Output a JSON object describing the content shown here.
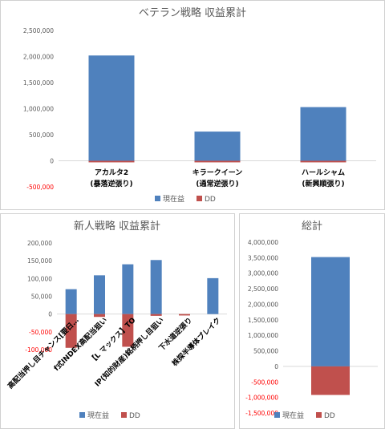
{
  "colors": {
    "profit": "#4f81bd",
    "dd": "#c0504d",
    "axis_text": "#595959",
    "negative_text": "#ff0000",
    "grid": "#d9d9d9"
  },
  "chart_data": [
    {
      "type": "bar",
      "title": "ベテラン戦略 収益累計",
      "categories": [
        [
          "アカルタ2",
          "(暴落逆張り)"
        ],
        [
          "キラークイーン",
          "(通常逆張り)"
        ],
        [
          "ハールシャム",
          "(新興順張り)"
        ]
      ],
      "series": [
        {
          "name": "現在益",
          "values": [
            2020000,
            560000,
            1030000
          ]
        },
        {
          "name": "DD",
          "values": [
            -30000,
            -30000,
            -30000
          ]
        }
      ],
      "ylim": [
        -500000,
        2500000
      ],
      "yticks": [
        -500000,
        0,
        500000,
        1000000,
        1500000,
        2000000,
        2500000
      ],
      "ytick_labels": [
        "-500,000",
        "0",
        "500,000",
        "1,000,000",
        "1,500,000",
        "2,000,000",
        "2,500,000"
      ],
      "grid": false,
      "legend": "bottom"
    },
    {
      "type": "bar",
      "title": "新人戦略 収益累計",
      "categories": [
        "高配当押し目チャンス[要日…",
        "f式INDEX高配当狙い",
        "【L マックス】TO",
        "IP(知的財産)銘柄押し目狙い",
        "下水道逆張り",
        "株探半導体ブレイク"
      ],
      "series": [
        {
          "name": "現在益",
          "values": [
            70000,
            109000,
            140000,
            152000,
            0,
            101000
          ]
        },
        {
          "name": "DD",
          "values": [
            -95000,
            -8000,
            -92000,
            -5000,
            -4000,
            0
          ]
        }
      ],
      "ylim": [
        -100000,
        200000
      ],
      "yticks": [
        -100000,
        -50000,
        0,
        50000,
        100000,
        150000,
        200000
      ],
      "ytick_labels": [
        "-100,000",
        "-50,000",
        "0",
        "50,000",
        "100,000",
        "150,000",
        "200,000"
      ],
      "grid": false,
      "legend": "bottom"
    },
    {
      "type": "bar",
      "title": "総計",
      "categories": [
        ""
      ],
      "series": [
        {
          "name": "現在益",
          "values": [
            3520000
          ]
        },
        {
          "name": "DD",
          "values": [
            -920000
          ]
        }
      ],
      "ylim": [
        -1500000,
        4000000
      ],
      "yticks": [
        -1500000,
        -1000000,
        -500000,
        0,
        500000,
        1000000,
        1500000,
        2000000,
        2500000,
        3000000,
        3500000,
        4000000
      ],
      "ytick_labels": [
        "-1,500,000",
        "-1,000,000",
        "-500,000",
        "0",
        "500,000",
        "1,000,000",
        "1,500,000",
        "2,000,000",
        "2,500,000",
        "3,000,000",
        "3,500,000",
        "4,000,000"
      ],
      "grid": false,
      "legend": "bottom"
    }
  ]
}
